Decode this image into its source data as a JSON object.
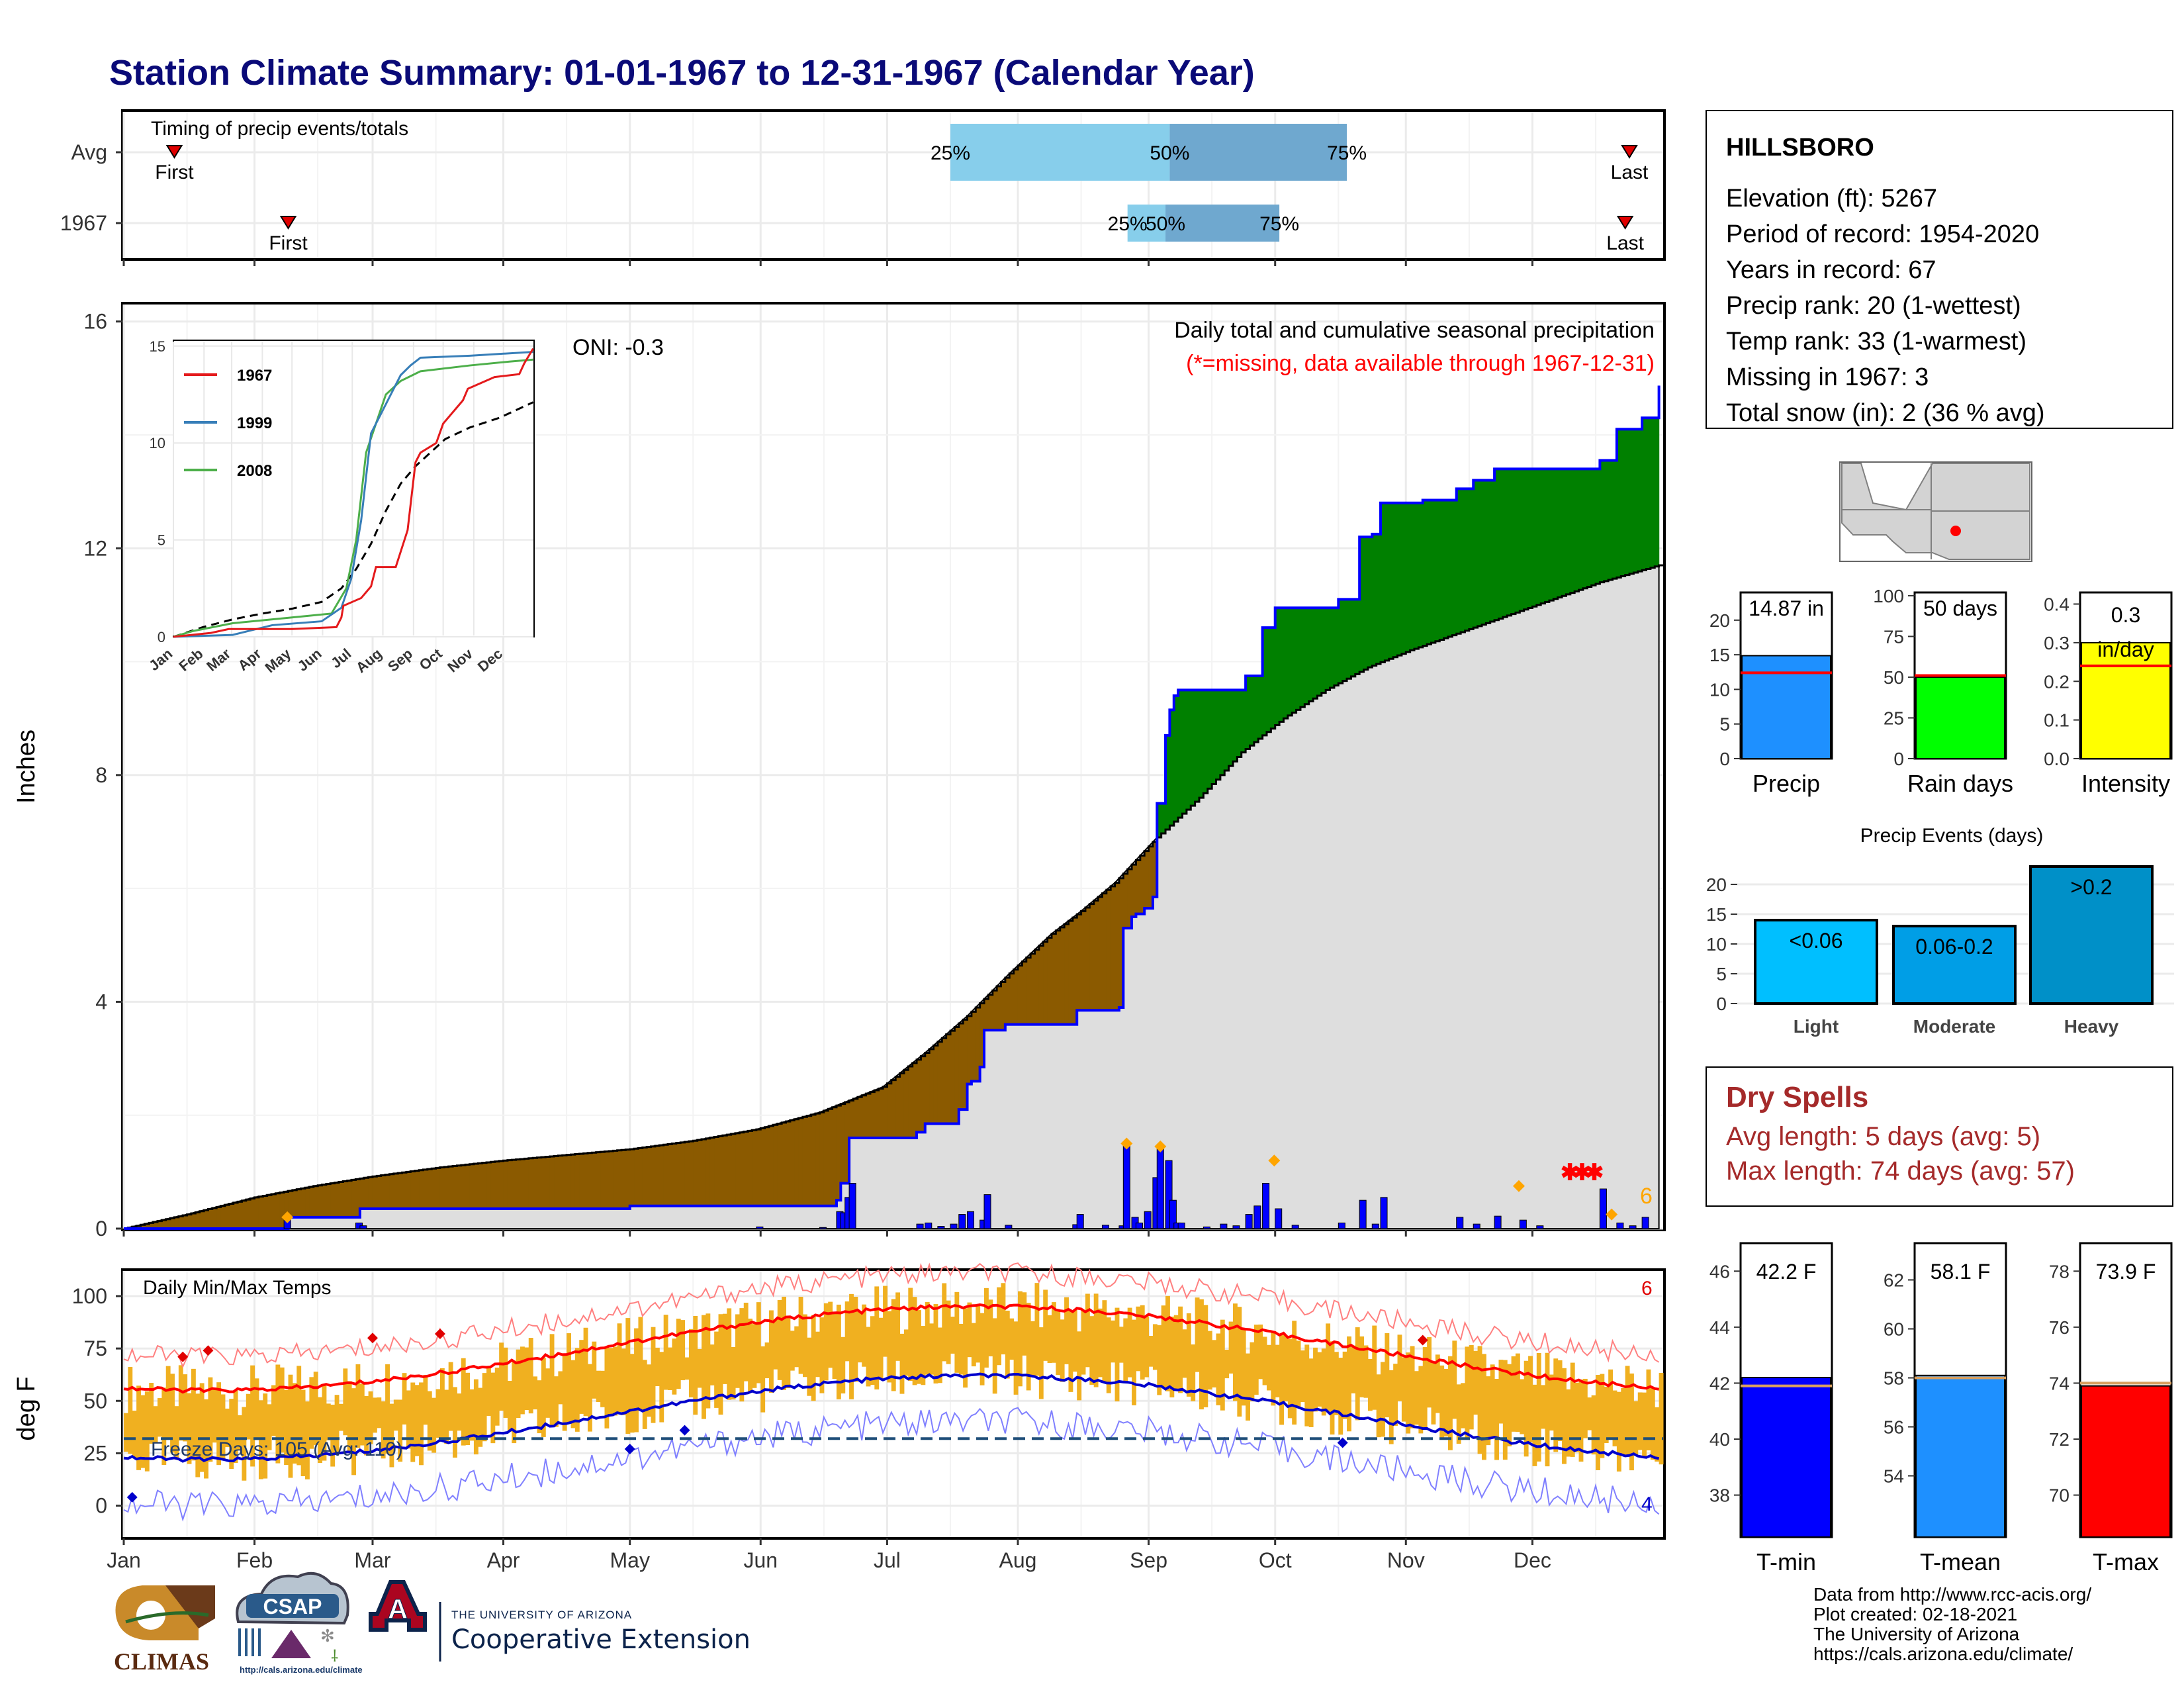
{
  "header": {
    "title": "Station Climate Summary: 01-01-1967 to 12-31-1967 (Calendar Year)"
  },
  "months": [
    "Jan",
    "Feb",
    "Mar",
    "Apr",
    "May",
    "Jun",
    "Jul",
    "Aug",
    "Sep",
    "Oct",
    "Nov",
    "Dec"
  ],
  "timing": {
    "label": "Timing of precip events/totals",
    "rows": [
      {
        "name": "Avg",
        "first_day": 12,
        "last_day": 357,
        "p25": 196,
        "p50": 248,
        "p75": 290,
        "first_label": "First",
        "last_label": "Last",
        "p25_label": "25%",
        "p50_label": "50%",
        "p75_label": "75%"
      },
      {
        "name": "1967",
        "first_day": 39,
        "last_day": 356,
        "p25": 238,
        "p50": 247,
        "p75": 274,
        "first_label": "First",
        "last_label": "Last",
        "p25_label": "25%",
        "p50_label": "50%",
        "p75_label": "75%"
      }
    ],
    "colors": {
      "light": "#87ceeb",
      "dark": "#6fa8cf",
      "marker": "#e00000"
    }
  },
  "precip": {
    "ylabel": "Inches",
    "ylim": [
      0,
      16.3
    ],
    "yticks": [
      0,
      4,
      8,
      12,
      16
    ],
    "note1": "Daily total and cumulative seasonal precipitation",
    "note2": "(*=missing, data available through 1967-12-31)",
    "oni": "ONI: -0.3",
    "count_label": "6",
    "avg_cum": [
      [
        0,
        0
      ],
      [
        15,
        0.25
      ],
      [
        31,
        0.55
      ],
      [
        45,
        0.75
      ],
      [
        59,
        0.92
      ],
      [
        75,
        1.08
      ],
      [
        90,
        1.2
      ],
      [
        105,
        1.3
      ],
      [
        120,
        1.4
      ],
      [
        135,
        1.55
      ],
      [
        150,
        1.75
      ],
      [
        165,
        2.05
      ],
      [
        180,
        2.5
      ],
      [
        190,
        3.1
      ],
      [
        200,
        3.75
      ],
      [
        210,
        4.5
      ],
      [
        220,
        5.2
      ],
      [
        227,
        5.6
      ],
      [
        235,
        6.1
      ],
      [
        245,
        6.9
      ],
      [
        255,
        7.6
      ],
      [
        265,
        8.4
      ],
      [
        275,
        9.0
      ],
      [
        285,
        9.5
      ],
      [
        295,
        9.9
      ],
      [
        305,
        10.2
      ],
      [
        320,
        10.6
      ],
      [
        335,
        11.0
      ],
      [
        350,
        11.4
      ],
      [
        364,
        11.7
      ]
    ],
    "obs_cum": [
      [
        0,
        0
      ],
      [
        38,
        0
      ],
      [
        39,
        0.2
      ],
      [
        55,
        0.2
      ],
      [
        56,
        0.35
      ],
      [
        120,
        0.4
      ],
      [
        160,
        0.4
      ],
      [
        169,
        0.5
      ],
      [
        170,
        0.8
      ],
      [
        172,
        1.6
      ],
      [
        188,
        1.7
      ],
      [
        190,
        1.85
      ],
      [
        198,
        2.1
      ],
      [
        200,
        2.55
      ],
      [
        201,
        2.6
      ],
      [
        203,
        2.85
      ],
      [
        204,
        3.5
      ],
      [
        209,
        3.6
      ],
      [
        225,
        3.6
      ],
      [
        226,
        3.85
      ],
      [
        236,
        3.9
      ],
      [
        237,
        5.3
      ],
      [
        239,
        5.5
      ],
      [
        240,
        5.55
      ],
      [
        242,
        5.65
      ],
      [
        244,
        5.85
      ],
      [
        245,
        7.5
      ],
      [
        247,
        8.7
      ],
      [
        248,
        9.15
      ],
      [
        249,
        9.4
      ],
      [
        250,
        9.5
      ],
      [
        265,
        9.5
      ],
      [
        266,
        9.75
      ],
      [
        270,
        10.6
      ],
      [
        273,
        10.95
      ],
      [
        288,
        11.1
      ],
      [
        293,
        12.2
      ],
      [
        296,
        12.25
      ],
      [
        298,
        12.8
      ],
      [
        308,
        12.85
      ],
      [
        316,
        13.05
      ],
      [
        320,
        13.2
      ],
      [
        325,
        13.4
      ],
      [
        344,
        13.4
      ],
      [
        350,
        13.55
      ],
      [
        354,
        14.1
      ],
      [
        360,
        14.3
      ],
      [
        370,
        14.4
      ],
      [
        377,
        14.55
      ],
      [
        388,
        14.6
      ],
      [
        393,
        14.65
      ],
      [
        400,
        14.87
      ],
      [
        364,
        14.87
      ]
    ],
    "daily": [
      [
        38,
        0.2
      ],
      [
        55,
        0.1
      ],
      [
        56,
        0.05
      ],
      [
        150,
        0.03
      ],
      [
        165,
        0.02
      ],
      [
        169,
        0.3
      ],
      [
        170,
        0.28
      ],
      [
        171,
        0.55
      ],
      [
        172,
        0.8
      ],
      [
        188,
        0.08
      ],
      [
        190,
        0.1
      ],
      [
        193,
        0.04
      ],
      [
        196,
        0.08
      ],
      [
        198,
        0.25
      ],
      [
        200,
        0.3
      ],
      [
        203,
        0.15
      ],
      [
        204,
        0.6
      ],
      [
        209,
        0.06
      ],
      [
        225,
        0.07
      ],
      [
        226,
        0.25
      ],
      [
        232,
        0.06
      ],
      [
        236,
        0.05
      ],
      [
        237,
        1.5
      ],
      [
        239,
        0.2
      ],
      [
        240,
        0.1
      ],
      [
        242,
        0.3
      ],
      [
        244,
        0.9
      ],
      [
        245,
        1.4
      ],
      [
        247,
        1.2
      ],
      [
        248,
        0.5
      ],
      [
        249,
        0.1
      ],
      [
        250,
        0.1
      ],
      [
        256,
        0.03
      ],
      [
        260,
        0.08
      ],
      [
        263,
        0.05
      ],
      [
        266,
        0.25
      ],
      [
        268,
        0.4
      ],
      [
        270,
        0.8
      ],
      [
        273,
        0.35
      ],
      [
        277,
        0.06
      ],
      [
        288,
        0.1
      ],
      [
        293,
        0.5
      ],
      [
        296,
        0.08
      ],
      [
        298,
        0.55
      ],
      [
        316,
        0.2
      ],
      [
        320,
        0.08
      ],
      [
        325,
        0.22
      ],
      [
        331,
        0.15
      ],
      [
        335,
        0.05
      ],
      [
        350,
        0.7
      ],
      [
        354,
        0.1
      ],
      [
        357,
        0.05
      ],
      [
        360,
        0.2
      ]
    ],
    "diamonds": [
      [
        38,
        0.2
      ],
      [
        237,
        1.5
      ],
      [
        245,
        1.45
      ],
      [
        272,
        1.2
      ],
      [
        330,
        0.75
      ],
      [
        352,
        0.25
      ]
    ],
    "missing_day": 345,
    "missing_y": 1.0,
    "colors": {
      "above": "#008000",
      "below": "#8b5a00",
      "normal": "#dedede",
      "obs": "#0000ff",
      "bar": "#0000ff",
      "diamond": "#ffa500",
      "missing": "#ff0000",
      "countcolor": "#ffa500"
    }
  },
  "inset": {
    "ylim": [
      0,
      15
    ],
    "yticks": [
      0,
      5,
      10,
      15
    ],
    "legend": [
      "1967",
      "1999",
      "2008"
    ],
    "colors": {
      "1967": "#e41a1c",
      "1999": "#377eb8",
      "2008": "#4daf4a",
      "avg": "#000000"
    },
    "avg": [
      [
        0,
        0
      ],
      [
        30,
        0.5
      ],
      [
        60,
        0.9
      ],
      [
        90,
        1.2
      ],
      [
        120,
        1.45
      ],
      [
        150,
        1.8
      ],
      [
        170,
        2.5
      ],
      [
        185,
        3.5
      ],
      [
        200,
        4.8
      ],
      [
        215,
        6.5
      ],
      [
        230,
        7.9
      ],
      [
        245,
        8.8
      ],
      [
        260,
        9.5
      ],
      [
        275,
        10.2
      ],
      [
        300,
        10.8
      ],
      [
        330,
        11.3
      ],
      [
        364,
        12.1
      ]
    ],
    "y1967": [
      [
        0,
        0
      ],
      [
        38,
        0.2
      ],
      [
        56,
        0.4
      ],
      [
        120,
        0.4
      ],
      [
        165,
        0.5
      ],
      [
        170,
        1.0
      ],
      [
        172,
        1.6
      ],
      [
        190,
        2.0
      ],
      [
        200,
        2.6
      ],
      [
        205,
        3.6
      ],
      [
        225,
        3.6
      ],
      [
        237,
        5.5
      ],
      [
        245,
        9.0
      ],
      [
        250,
        9.5
      ],
      [
        266,
        10.0
      ],
      [
        273,
        11.0
      ],
      [
        293,
        12.2
      ],
      [
        298,
        12.8
      ],
      [
        325,
        13.4
      ],
      [
        350,
        13.55
      ],
      [
        355,
        14.1
      ],
      [
        364,
        14.87
      ]
    ],
    "y1999": [
      [
        0,
        0
      ],
      [
        60,
        0.1
      ],
      [
        100,
        0.6
      ],
      [
        150,
        0.8
      ],
      [
        170,
        1.5
      ],
      [
        180,
        3.0
      ],
      [
        190,
        6.0
      ],
      [
        200,
        10.5
      ],
      [
        210,
        11.5
      ],
      [
        220,
        12.5
      ],
      [
        230,
        13.5
      ],
      [
        240,
        14.0
      ],
      [
        250,
        14.4
      ],
      [
        300,
        14.5
      ],
      [
        364,
        14.7
      ]
    ],
    "y2008": [
      [
        0,
        0
      ],
      [
        20,
        0.3
      ],
      [
        60,
        0.7
      ],
      [
        120,
        1.0
      ],
      [
        160,
        1.2
      ],
      [
        175,
        2.5
      ],
      [
        185,
        5.0
      ],
      [
        195,
        9.5
      ],
      [
        205,
        11.0
      ],
      [
        215,
        12.5
      ],
      [
        230,
        13.2
      ],
      [
        250,
        13.7
      ],
      [
        300,
        14.0
      ],
      [
        340,
        14.2
      ],
      [
        364,
        14.3
      ]
    ]
  },
  "temps": {
    "label": "Daily Min/Max Temps",
    "ylabel": "deg F",
    "ylim": [
      -15,
      112
    ],
    "yticks": [
      0,
      25,
      50,
      75,
      100
    ],
    "freeze_label": "Freeze Days: 105 (Avg: 110)",
    "freeze_line": 32,
    "count_top": "6",
    "count_bottom": "4",
    "max_diamonds": [
      [
        14,
        71
      ],
      [
        20,
        74
      ],
      [
        59,
        80
      ],
      [
        75,
        82
      ],
      [
        308,
        79
      ]
    ],
    "min_diamonds": [
      [
        2,
        4
      ],
      [
        120,
        27
      ],
      [
        133,
        36
      ],
      [
        289,
        30
      ]
    ],
    "colors": {
      "bars": "#f0b020",
      "avgmax": "#ff0000",
      "avgmin": "#0000cc",
      "recmax": "#ff8080",
      "recmin": "#8080ff",
      "freeze": "#1f4e79",
      "maxdiamond": "#e00000",
      "mindiamond": "#0000cc"
    }
  },
  "station": {
    "name": "HILLSBORO",
    "lines": [
      "Elevation (ft): 5267",
      "Period of record: 1954-2020",
      "Years in record: 67",
      "Precip rank: 20 (1-wettest)",
      "Temp rank: 33 (1-warmest)",
      "Missing in 1967: 3",
      "Total snow (in): 2 (36 % avg)"
    ]
  },
  "gauges": [
    {
      "name": "Precip",
      "value": 14.87,
      "avg": 12.4,
      "label": "14.87 in",
      "ylim": [
        0,
        24
      ],
      "ticks": [
        0,
        5,
        10,
        15,
        20
      ],
      "color": "#1e90ff"
    },
    {
      "name": "Rain days",
      "value": 50,
      "avg": 51,
      "label": "50 days",
      "ylim": [
        0,
        102
      ],
      "ticks": [
        0,
        25,
        50,
        75,
        100
      ],
      "color": "#00ff00"
    },
    {
      "name": "Intensity",
      "value": 0.3,
      "avg": 0.24,
      "label1": "0.3",
      "label2": "in/day",
      "ylim": [
        0,
        0.43
      ],
      "ticks": [
        0.0,
        0.1,
        0.2,
        0.3,
        0.4
      ],
      "color": "#ffff00"
    }
  ],
  "events": {
    "title": "Precip Events (days)",
    "ylim": [
      0,
      24
    ],
    "ticks": [
      0,
      5,
      10,
      15,
      20
    ],
    "bars": [
      {
        "name": "Light",
        "value": 14,
        "label": "<0.06",
        "color": "#00bfff"
      },
      {
        "name": "Moderate",
        "value": 13,
        "label": "0.06-0.2",
        "color": "#009ee6"
      },
      {
        "name": "Heavy",
        "value": 23,
        "label": ">0.2",
        "color": "#0090c8"
      }
    ]
  },
  "dry": {
    "title": "Dry Spells",
    "line1": "Avg length: 5 days (avg: 5)",
    "line2": "Max length: 74 days (avg: 57)",
    "color": "#a52a2a"
  },
  "tgauges": [
    {
      "name": "T-min",
      "label": "42.2 F",
      "value": 42.2,
      "avg": 41.9,
      "ylim": [
        36.5,
        47
      ],
      "ticks": [
        38,
        40,
        42,
        44,
        46
      ],
      "color": "#0000ff"
    },
    {
      "name": "T-mean",
      "label": "58.1 F",
      "value": 58.1,
      "avg": 58.0,
      "ylim": [
        51.5,
        63.5
      ],
      "ticks": [
        54,
        56,
        58,
        60,
        62
      ],
      "color": "#1e90ff"
    },
    {
      "name": "T-max",
      "label": "73.9 F",
      "value": 73.9,
      "avg": 74.0,
      "ylim": [
        68.5,
        79
      ],
      "ticks": [
        70,
        72,
        74,
        76,
        78
      ],
      "color": "#ff0000"
    }
  ],
  "logos": {
    "climas": "CLIMAS",
    "csap": "CSAP",
    "csap_url": "http://cals.arizona.edu/climate",
    "ua_line1": "THE UNIVERSITY OF ARIZONA",
    "ua_line2": "Cooperative Extension",
    "ua_letter": "A"
  },
  "credits": [
    "Data from http://www.rcc-acis.org/",
    "Plot created: 02-18-2021",
    "The University of Arizona",
    "https://cals.arizona.edu/climate/"
  ]
}
